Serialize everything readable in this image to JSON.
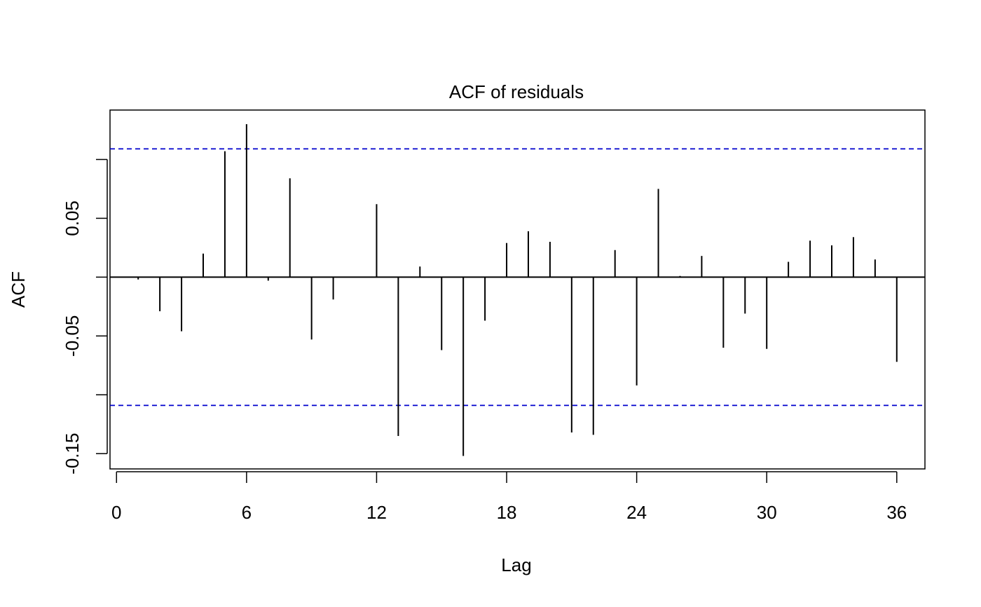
{
  "chart_data": {
    "type": "bar",
    "title": "ACF of residuals",
    "xlabel": "Lag",
    "ylabel": "ACF",
    "xlim": [
      -0.3,
      37.3
    ],
    "ylim": [
      -0.163,
      0.142
    ],
    "x_ticks": [
      0,
      6,
      12,
      18,
      24,
      30,
      36
    ],
    "x_tick_labels": [
      "0",
      "6",
      "12",
      "18",
      "24",
      "30",
      "36"
    ],
    "y_ticks": [
      -0.15,
      -0.1,
      -0.05,
      0.0,
      0.05,
      0.1
    ],
    "y_tick_labels": [
      "-0.15",
      "",
      "-0.05",
      "",
      "0.05",
      ""
    ],
    "confidence_bounds": [
      0.109,
      -0.109
    ],
    "lags": [
      1,
      2,
      3,
      4,
      5,
      6,
      7,
      8,
      9,
      10,
      11,
      12,
      13,
      14,
      15,
      16,
      17,
      18,
      19,
      20,
      21,
      22,
      23,
      24,
      25,
      26,
      27,
      28,
      29,
      30,
      31,
      32,
      33,
      34,
      35,
      36
    ],
    "values": [
      -0.002,
      -0.029,
      -0.046,
      0.02,
      0.107,
      0.13,
      -0.003,
      0.084,
      -0.053,
      -0.019,
      0.0,
      0.062,
      -0.135,
      0.009,
      -0.062,
      -0.152,
      -0.037,
      0.029,
      0.039,
      0.03,
      -0.132,
      -0.134,
      0.023,
      -0.092,
      0.075,
      0.001,
      0.018,
      -0.06,
      -0.031,
      -0.061,
      0.013,
      0.031,
      0.027,
      0.034,
      0.015,
      -0.072
    ],
    "colors": {
      "bars": "#000000",
      "confidence_lines": "#0000CD",
      "axes": "#000000"
    },
    "grid": false,
    "legend": "none"
  }
}
